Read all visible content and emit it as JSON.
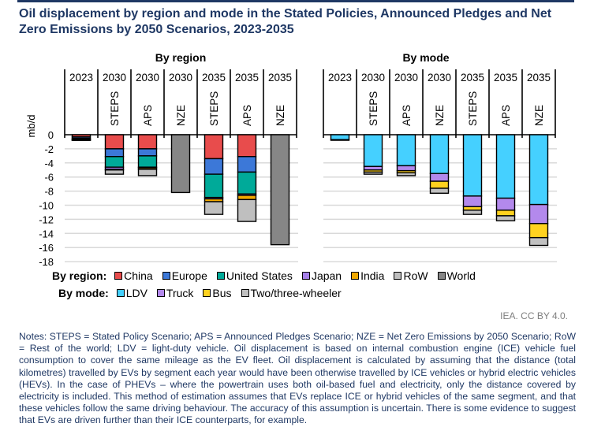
{
  "title": "Oil displacement by region and mode in the Stated Policies, Announced Pledges and Net Zero Emissions by 2050 Scenarios, 2023-2035",
  "chart_data": [
    {
      "type": "bar",
      "stacked": true,
      "title": "By region",
      "ylabel": "mb/d",
      "ylim": [
        -18,
        0
      ],
      "yticks": [
        0,
        -2,
        -4,
        -6,
        -8,
        -10,
        -12,
        -14,
        -16,
        -18
      ],
      "grid": true,
      "categories": [
        {
          "year": "2023",
          "scenario": ""
        },
        {
          "year": "2030",
          "scenario": "STEPS"
        },
        {
          "year": "2030",
          "scenario": "APS"
        },
        {
          "year": "2030",
          "scenario": "NZE"
        },
        {
          "year": "2035",
          "scenario": "STEPS"
        },
        {
          "year": "2035",
          "scenario": "APS"
        },
        {
          "year": "2035",
          "scenario": "NZE"
        }
      ],
      "series": [
        {
          "name": "China",
          "color": "#e84c4c",
          "values": [
            -0.3,
            -2.0,
            -2.0,
            0,
            -3.4,
            -3.1,
            0
          ]
        },
        {
          "name": "Europe",
          "color": "#3c78d8",
          "values": [
            -0.2,
            -1.1,
            -1.0,
            0,
            -2.2,
            -2.2,
            0
          ]
        },
        {
          "name": "United States",
          "color": "#00aa99",
          "values": [
            -0.15,
            -1.5,
            -1.6,
            0,
            -3.3,
            -3.1,
            0
          ]
        },
        {
          "name": "Japan",
          "color": "#a57fe8",
          "values": [
            -0.05,
            -0.3,
            -0.1,
            0,
            -0.2,
            -0.2,
            0
          ]
        },
        {
          "name": "India",
          "color": "#f2a900",
          "values": [
            -0.02,
            -0.1,
            -0.2,
            0,
            -0.4,
            -0.6,
            0
          ]
        },
        {
          "name": "RoW",
          "color": "#bfbfbf",
          "values": [
            -0.08,
            -0.6,
            -0.9,
            0,
            -1.8,
            -3.1,
            0
          ]
        },
        {
          "name": "World",
          "color": "#868686",
          "values": [
            0,
            0,
            0,
            -8.2,
            0,
            0,
            -15.6
          ]
        }
      ]
    },
    {
      "type": "bar",
      "stacked": true,
      "title": "By mode",
      "ylim": [
        -18,
        0
      ],
      "grid": true,
      "categories": [
        {
          "year": "2023",
          "scenario": ""
        },
        {
          "year": "2030",
          "scenario": "STEPS"
        },
        {
          "year": "2030",
          "scenario": "APS"
        },
        {
          "year": "2030",
          "scenario": "NZE"
        },
        {
          "year": "2035",
          "scenario": "STEPS"
        },
        {
          "year": "2035",
          "scenario": "APS"
        },
        {
          "year": "2035",
          "scenario": "NZE"
        }
      ],
      "series": [
        {
          "name": "LDV",
          "color": "#45d0ff",
          "values": [
            -0.7,
            -4.5,
            -4.4,
            -5.5,
            -8.7,
            -9.0,
            -9.9
          ]
        },
        {
          "name": "Truck",
          "color": "#b389ec",
          "values": [
            0,
            -0.5,
            -0.7,
            -1.1,
            -1.5,
            -1.7,
            -2.7
          ]
        },
        {
          "name": "Bus",
          "color": "#ffd21f",
          "values": [
            0,
            -0.3,
            -0.3,
            -1.0,
            -0.5,
            -0.8,
            -2.0
          ]
        },
        {
          "name": "Two/three-wheeler",
          "color": "#c0c0c0",
          "values": [
            -0.05,
            -0.3,
            -0.4,
            -0.7,
            -0.6,
            -0.7,
            -1.1
          ]
        }
      ]
    }
  ],
  "legend": {
    "region_label": "By region:",
    "region_items": [
      {
        "name": "China",
        "color": "#e84c4c"
      },
      {
        "name": "Europe",
        "color": "#3c78d8"
      },
      {
        "name": "United States",
        "color": "#00aa99"
      },
      {
        "name": "Japan",
        "color": "#a57fe8"
      },
      {
        "name": "India",
        "color": "#f2a900"
      },
      {
        "name": "RoW",
        "color": "#bfbfbf"
      },
      {
        "name": "World",
        "color": "#868686"
      }
    ],
    "mode_label": "By mode:",
    "mode_items": [
      {
        "name": "LDV",
        "color": "#45d0ff"
      },
      {
        "name": "Truck",
        "color": "#b389ec"
      },
      {
        "name": "Bus",
        "color": "#ffd21f"
      },
      {
        "name": "Two/three-wheeler",
        "color": "#c0c0c0"
      }
    ]
  },
  "credit": "IEA. CC BY 4.0.",
  "notes": "Notes: STEPS = Stated Policy Scenario; APS = Announced Pledges Scenario; NZE = Net Zero Emissions by 2050 Scenario; RoW = Rest of the world; LDV = light-duty vehicle. Oil displacement is based on internal combustion engine (ICE) vehicle fuel consumption to cover the same mileage as the EV fleet. Oil displacement is calculated by assuming that the distance (total kilometres) travelled by EVs by segment each year would have been otherwise travelled by ICE vehicles or hybrid electric vehicles (HEVs). In the case of PHEVs – where the powertrain uses both oil-based fuel and electricity, only the distance covered by electricity is included. This method of estimation assumes that EVs replace ICE or hybrid vehicles of the same segment, and that these vehicles follow the same driving behaviour. The accuracy of this assumption is uncertain. There is some evidence to suggest that EVs are driven further than their ICE counterparts, for example."
}
